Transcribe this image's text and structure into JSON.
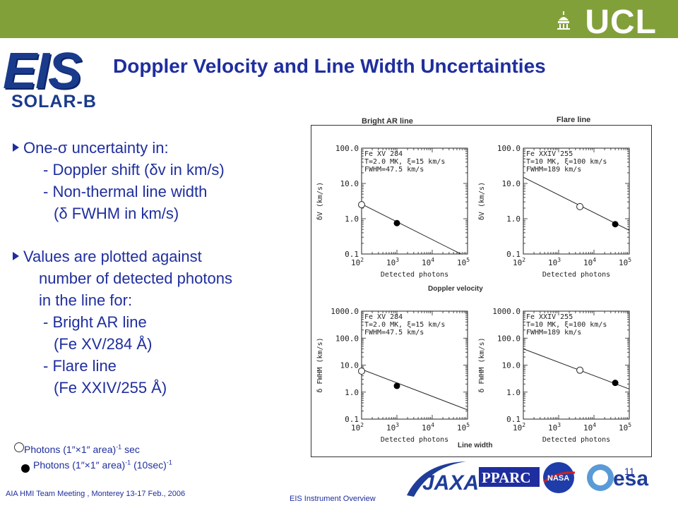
{
  "header": {
    "institution": "UCL",
    "logo": {
      "main": "EIS",
      "sub": "SOLAR-B"
    },
    "title": "Doppler Velocity and Line Width Uncertainties"
  },
  "bullets": {
    "b1_head_pre": "One-",
    "b1_head_sym": "σ",
    "b1_head_post": " uncertainty in:",
    "b1_l1_pre": "- Doppler shift (",
    "b1_l1_sym": "δ",
    "b1_l1_post": "v in km/s)",
    "b1_l2": "- Non-thermal line width",
    "b1_l3_pre": "(",
    "b1_l3_sym": "δ",
    "b1_l3_post": " FWHM in km/s)",
    "b2_l1": "Values are plotted against",
    "b2_l2": "number of detected photons",
    "b2_l3": "in the line for:",
    "b2_l4": "- Bright AR line",
    "b2_l5": "(Fe XV/284 Å)",
    "b2_l6": "- Flare line",
    "b2_l7": "(Fe XXIV/255 Å)"
  },
  "legend": {
    "open_pre": "Photons (1″",
    "open_times": "×",
    "open_mid": "1″ area)",
    "open_sup": "-1",
    "open_post": " sec",
    "filled_pre": "Photons (1″",
    "filled_times": "×",
    "filled_mid": "1″ area)",
    "filled_sup": "-1",
    "filled_post": " (10sec)",
    "filled_sup2": "-1"
  },
  "figure_labels": {
    "col_left": "Bright AR line",
    "col_right": "Flare line",
    "row_top": "Doppler velocity",
    "row_bottom": "Line width"
  },
  "footer": {
    "meeting": "AIA HMI Team Meeting , Monterey  13-17 Feb., 2006",
    "center": "EIS Instrument Overview",
    "page": "11"
  },
  "logos": [
    "JAXA",
    "PPARC",
    "NASA",
    "esa"
  ],
  "colors": {
    "top_bar": "#82a03a",
    "text": "#1f2e9e",
    "eis_blue": "#1a3a8c"
  },
  "chart_data": [
    {
      "type": "line",
      "panel": "top-left",
      "annotation": [
        "Fe XV 284",
        "T=2.0 MK, ξ=15 km/s",
        "FWHM=47.5 km/s"
      ],
      "xlabel": "Detected photons",
      "ylabel": "δV (km/s)",
      "x_scale": "log",
      "y_scale": "log",
      "xlim": [
        100,
        100000
      ],
      "ylim": [
        0.1,
        100
      ],
      "x_ticks": [
        "10^2",
        "10^3",
        "10^4",
        "10^5"
      ],
      "y_ticks": [
        "0.1",
        "1.0",
        "10.0",
        "100.0"
      ],
      "line": {
        "x": [
          100,
          65000
        ],
        "y": [
          2.6,
          0.1
        ]
      },
      "points": [
        {
          "name": "open",
          "x": 100,
          "y": 2.5
        },
        {
          "name": "filled",
          "x": 1000,
          "y": 0.75
        }
      ]
    },
    {
      "type": "line",
      "panel": "top-right",
      "annotation": [
        "Fe XXIV 255",
        "T=10 MK, ξ=100 km/s",
        "FWHM=189 km/s"
      ],
      "xlabel": "Detected photons",
      "ylabel": "δV (km/s)",
      "x_scale": "log",
      "y_scale": "log",
      "xlim": [
        100,
        100000
      ],
      "ylim": [
        0.1,
        100
      ],
      "x_ticks": [
        "10^2",
        "10^3",
        "10^4",
        "10^5"
      ],
      "y_ticks": [
        "0.1",
        "1.0",
        "10.0",
        "100.0"
      ],
      "line": {
        "x": [
          100,
          100000
        ],
        "y": [
          15,
          0.47
        ]
      },
      "points": [
        {
          "name": "open",
          "x": 4000,
          "y": 2.2
        },
        {
          "name": "filled",
          "x": 40000,
          "y": 0.7
        }
      ]
    },
    {
      "type": "line",
      "panel": "bottom-left",
      "annotation": [
        "Fe XV 284",
        "T=2.0 MK, ξ=15 km/s",
        "FWHM=47.5 km/s"
      ],
      "xlabel": "Detected photons",
      "ylabel": "δ FWHM (km/s)",
      "x_scale": "log",
      "y_scale": "log",
      "xlim": [
        100,
        100000
      ],
      "ylim": [
        0.1,
        1000
      ],
      "x_ticks": [
        "10^2",
        "10^3",
        "10^4",
        "10^5"
      ],
      "y_ticks": [
        "0.1",
        "1.0",
        "10.0",
        "100.0",
        "1000.0"
      ],
      "line": {
        "x": [
          100,
          100000
        ],
        "y": [
          7,
          0.22
        ]
      },
      "points": [
        {
          "name": "open",
          "x": 100,
          "y": 6
        },
        {
          "name": "filled",
          "x": 1000,
          "y": 1.7
        }
      ]
    },
    {
      "type": "line",
      "panel": "bottom-right",
      "annotation": [
        "Fe XXIV 255",
        "T=10 MK, ξ=100 km/s",
        "FWHM=189 km/s"
      ],
      "xlabel": "Detected photons",
      "ylabel": "δ FWHM (km/s)",
      "x_scale": "log",
      "y_scale": "log",
      "xlim": [
        100,
        100000
      ],
      "ylim": [
        0.1,
        1000
      ],
      "x_ticks": [
        "10^2",
        "10^3",
        "10^4",
        "10^5"
      ],
      "y_ticks": [
        "0.1",
        "1.0",
        "10.0",
        "100.0",
        "1000.0"
      ],
      "line": {
        "x": [
          100,
          100000
        ],
        "y": [
          40,
          1.3
        ]
      },
      "points": [
        {
          "name": "open",
          "x": 4000,
          "y": 6.5
        },
        {
          "name": "filled",
          "x": 40000,
          "y": 2.2
        }
      ]
    }
  ]
}
